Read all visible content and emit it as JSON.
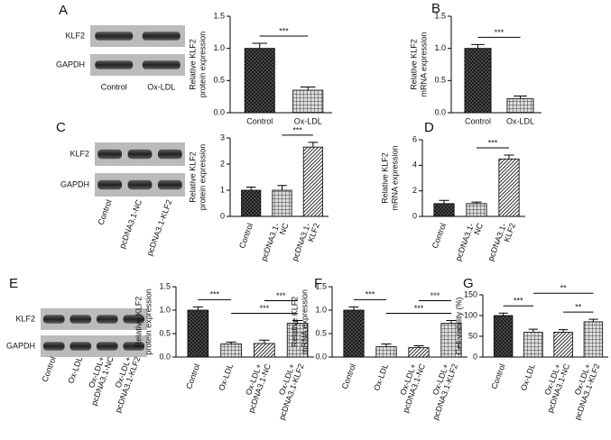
{
  "blots": [
    {
      "letter": "A",
      "rows": [
        "KLF2",
        "GAPDH"
      ],
      "lanes": [
        [
          "Control"
        ],
        [
          "Ox-LDL"
        ]
      ]
    },
    {
      "letter": "C",
      "rows": [
        "KLF2",
        "GAPDH"
      ],
      "lanes": [
        [
          "Control"
        ],
        [
          "pcDNA3.1-NC"
        ],
        [
          "pcDNA3.1-KLF2"
        ]
      ]
    },
    {
      "letter": "E",
      "rows": [
        "KLF2",
        "GAPDH"
      ],
      "lanes": [
        [
          "Control"
        ],
        [
          "Ox-LDL"
        ],
        [
          "Ox-LDL+",
          "pcDNA3.1-NC"
        ],
        [
          "Ox-LDL+",
          "pcDNA3.1-KLF2"
        ]
      ]
    }
  ],
  "chart_data": [
    {
      "type": "bar",
      "ylabel": [
        "Relative KLF2",
        "protein expression"
      ],
      "categories": [
        [
          "Control"
        ],
        [
          "Ox-LDL"
        ]
      ],
      "values": [
        1.0,
        0.35
      ],
      "errors": [
        0.08,
        0.05
      ],
      "fills": [
        "crosshatch",
        "grid"
      ],
      "ylim": [
        0,
        1.5
      ],
      "yticks": [
        {
          "value": 0,
          "label": "0.0"
        },
        {
          "value": 0.5,
          "label": "0.5"
        },
        {
          "value": 1,
          "label": "1.0"
        },
        {
          "value": 1.5,
          "label": "1.5"
        }
      ],
      "annotations": [
        {
          "label": "***",
          "between": [
            "Control",
            "Ox-LDL"
          ]
        }
      ]
    },
    {
      "type": "bar",
      "letter": "B",
      "ylabel": [
        "Relative KLF2",
        "mRNA expression"
      ],
      "categories": [
        [
          "Control"
        ],
        [
          "Ox-LDL"
        ]
      ],
      "values": [
        1.0,
        0.22
      ],
      "errors": [
        0.06,
        0.04
      ],
      "fills": [
        "crosshatch",
        "grid"
      ],
      "ylim": [
        0,
        1.5
      ],
      "yticks": [
        {
          "value": 0,
          "label": "0.0"
        },
        {
          "value": 0.5,
          "label": "0.5"
        },
        {
          "value": 1,
          "label": "1.0"
        },
        {
          "value": 1.5,
          "label": "1.5"
        }
      ],
      "annotations": [
        {
          "label": "***",
          "between": [
            "Control",
            "Ox-LDL"
          ]
        }
      ]
    },
    {
      "type": "bar",
      "ylabel": [
        "Relative KLF2",
        "protein expression"
      ],
      "rotated": true,
      "categories": [
        [
          "Control"
        ],
        [
          "pcDNA3.1-",
          "NC"
        ],
        [
          "pcDNA3.1-",
          "KLF2"
        ]
      ],
      "values": [
        1.0,
        1.0,
        2.65
      ],
      "errors": [
        0.12,
        0.18,
        0.18
      ],
      "fills": [
        "crosshatch",
        "grid",
        "hatch"
      ],
      "ylim": [
        0,
        3
      ],
      "yticks": [
        0,
        1,
        2,
        3
      ],
      "annotations": [
        {
          "label": "***",
          "between": [
            "pcDNA3.1-",
            "pcDNA3.1-"
          ]
        }
      ]
    },
    {
      "type": "bar",
      "letter": "D",
      "ylabel": [
        "Relative KLF2",
        "mRNA expression"
      ],
      "rotated": true,
      "categories": [
        [
          "Control"
        ],
        [
          "pcDNA3.1-",
          "NC"
        ],
        [
          "pcDNA3.1-",
          "KLF2"
        ]
      ],
      "values": [
        1.0,
        1.0,
        4.5
      ],
      "errors": [
        0.25,
        0.12,
        0.3
      ],
      "fills": [
        "crosshatch",
        "grid",
        "hatch"
      ],
      "ylim": [
        0,
        6
      ],
      "yticks": [
        0,
        2,
        4,
        6
      ],
      "annotations": [
        {
          "label": "***",
          "between": [
            "pcDNA3.1-",
            "pcDNA3.1-"
          ]
        }
      ]
    },
    {
      "type": "bar",
      "ylabel": [
        "Relative KLF2",
        "protein expression"
      ],
      "rotated": true,
      "categories": [
        [
          "Control"
        ],
        [
          "Ox-LDL"
        ],
        [
          "Ox-LDL+",
          "pcDNA3.1-NC"
        ],
        [
          "Ox-LDL+",
          "pcDNA3.1-KLF2"
        ]
      ],
      "values": [
        1.0,
        0.28,
        0.29,
        0.72
      ],
      "errors": [
        0.07,
        0.04,
        0.07,
        0.06
      ],
      "fills": [
        "crosshatch",
        "grid",
        "hatch",
        "grid"
      ],
      "ylim": [
        0,
        1.5
      ],
      "yticks": [
        {
          "value": 0,
          "label": "0.0"
        },
        {
          "value": 0.5,
          "label": "0.5"
        },
        {
          "value": 1,
          "label": "1.0"
        },
        {
          "value": 1.5,
          "label": "1.5"
        }
      ],
      "annotations": [
        {
          "label": "***",
          "between": [
            "Control",
            "Ox-LDL"
          ]
        },
        {
          "label": "***",
          "between": [
            "Ox-LDL",
            "pcDNA3.1-KLF2"
          ]
        },
        {
          "label": "***",
          "between": [
            "pcDNA3.1-NC",
            "pcDNA3.1-KLF2"
          ]
        }
      ]
    },
    {
      "type": "bar",
      "letter": "F",
      "ylabel": [
        "Relative KLF2",
        "mRNA expression"
      ],
      "rotated": true,
      "categories": [
        [
          "Control"
        ],
        [
          "Ox-LDL"
        ],
        [
          "Ox-LDL+",
          "pcDNA3.1-NC"
        ],
        [
          "Ox-LDL+",
          "pcDNA3.1-KLF2"
        ]
      ],
      "values": [
        1.0,
        0.22,
        0.2,
        0.72
      ],
      "errors": [
        0.07,
        0.06,
        0.04,
        0.06
      ],
      "fills": [
        "crosshatch",
        "grid",
        "hatch",
        "grid"
      ],
      "ylim": [
        0,
        1.5
      ],
      "yticks": [
        {
          "value": 0,
          "label": "0.0"
        },
        {
          "value": 0.5,
          "label": "0.5"
        },
        {
          "value": 1,
          "label": "1.0"
        },
        {
          "value": 1.5,
          "label": "1.5"
        }
      ],
      "annotations": [
        {
          "label": "***",
          "between": [
            "Control",
            "Ox-LDL"
          ]
        },
        {
          "label": "***",
          "between": [
            "Ox-LDL",
            "pcDNA3.1-KLF2"
          ]
        },
        {
          "label": "***",
          "between": [
            "pcDNA3.1-NC",
            "pcDNA3.1-KLF2"
          ]
        }
      ]
    },
    {
      "type": "bar",
      "letter": "G",
      "ylabel": [
        "Cell viability (%)"
      ],
      "rotated": true,
      "categories": [
        [
          "Control"
        ],
        [
          "Ox-LDL"
        ],
        [
          "Ox-LDL+",
          "pcDNA3.1-NC"
        ],
        [
          "Ox-LDL+",
          "pcDNA3.1-KLF2"
        ]
      ],
      "values": [
        100,
        60,
        60,
        85
      ],
      "errors": [
        6,
        7,
        6,
        6
      ],
      "fills": [
        "crosshatch",
        "grid",
        "hatch",
        "grid"
      ],
      "ylim": [
        0,
        150
      ],
      "yticks": [
        0,
        50,
        100,
        150
      ],
      "annotations": [
        {
          "label": "***",
          "between": [
            "Control",
            "Ox-LDL"
          ]
        },
        {
          "label": "**",
          "between": [
            "Ox-LDL",
            "pcDNA3.1-KLF2"
          ]
        },
        {
          "label": "**",
          "between": [
            "pcDNA3.1-NC",
            "pcDNA3.1-KLF2"
          ]
        }
      ]
    }
  ]
}
